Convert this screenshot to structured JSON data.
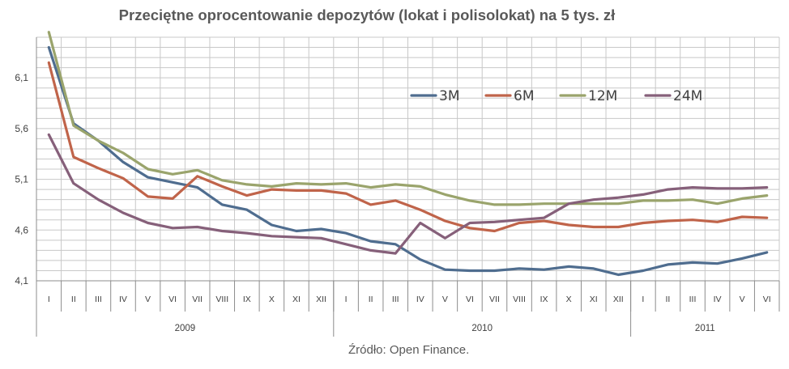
{
  "title": "Przeciętne oprocentowanie depozytów (lokat i polisolokat) na 5 tys. zł",
  "source": "Źródło: Open Finance.",
  "chart_data": {
    "type": "line",
    "title": "Przeciętne oprocentowanie depozytów (lokat i polisolokat) na 5 tys. zł",
    "x": [
      "I",
      "II",
      "III",
      "IV",
      "V",
      "VI",
      "VII",
      "VIII",
      "IX",
      "X",
      "XI",
      "XII",
      "I",
      "II",
      "III",
      "IV",
      "V",
      "VI",
      "VII",
      "VIII",
      "IX",
      "X",
      "XI",
      "XII",
      "I",
      "II",
      "III",
      "IV",
      "V",
      "VI"
    ],
    "year_groups": [
      {
        "label": "2009",
        "count": 12
      },
      {
        "label": "2010",
        "count": 12
      },
      {
        "label": "2011",
        "count": 6
      }
    ],
    "y_ticks": [
      "4,1",
      "4,6",
      "5,1",
      "5,6",
      "6,1"
    ],
    "ylim": [
      4.1,
      6.5
    ],
    "grid": true,
    "legend_position": "top-right",
    "series": [
      {
        "name": "3M",
        "color": "#4f6d8f",
        "values": [
          6.4,
          5.65,
          5.48,
          5.27,
          5.12,
          5.07,
          5.02,
          4.85,
          4.8,
          4.65,
          4.59,
          4.61,
          4.57,
          4.49,
          4.46,
          4.31,
          4.21,
          4.2,
          4.2,
          4.22,
          4.21,
          4.24,
          4.22,
          4.16,
          4.2,
          4.26,
          4.28,
          4.27,
          4.32,
          4.38
        ]
      },
      {
        "name": "6M",
        "color": "#c0644a",
        "values": [
          6.25,
          5.32,
          5.21,
          5.11,
          4.93,
          4.91,
          5.13,
          5.03,
          4.94,
          5.0,
          4.99,
          4.99,
          4.96,
          4.85,
          4.89,
          4.8,
          4.69,
          4.62,
          4.59,
          4.67,
          4.69,
          4.65,
          4.63,
          4.63,
          4.67,
          4.69,
          4.7,
          4.68,
          4.73,
          4.72
        ]
      },
      {
        "name": "12M",
        "color": "#9aa46c",
        "values": [
          6.55,
          5.63,
          5.48,
          5.36,
          5.2,
          5.15,
          5.19,
          5.09,
          5.05,
          5.03,
          5.06,
          5.05,
          5.06,
          5.02,
          5.05,
          5.03,
          4.95,
          4.89,
          4.85,
          4.85,
          4.86,
          4.86,
          4.86,
          4.86,
          4.89,
          4.89,
          4.9,
          4.86,
          4.91,
          4.94
        ]
      },
      {
        "name": "24M",
        "color": "#86607a",
        "values": [
          5.54,
          5.06,
          4.9,
          4.77,
          4.67,
          4.62,
          4.63,
          4.59,
          4.57,
          4.54,
          4.53,
          4.52,
          4.46,
          4.4,
          4.37,
          4.67,
          4.52,
          4.67,
          4.68,
          4.7,
          4.72,
          4.86,
          4.9,
          4.92,
          4.95,
          5.0,
          5.02,
          5.01,
          5.01,
          5.02
        ]
      }
    ]
  }
}
